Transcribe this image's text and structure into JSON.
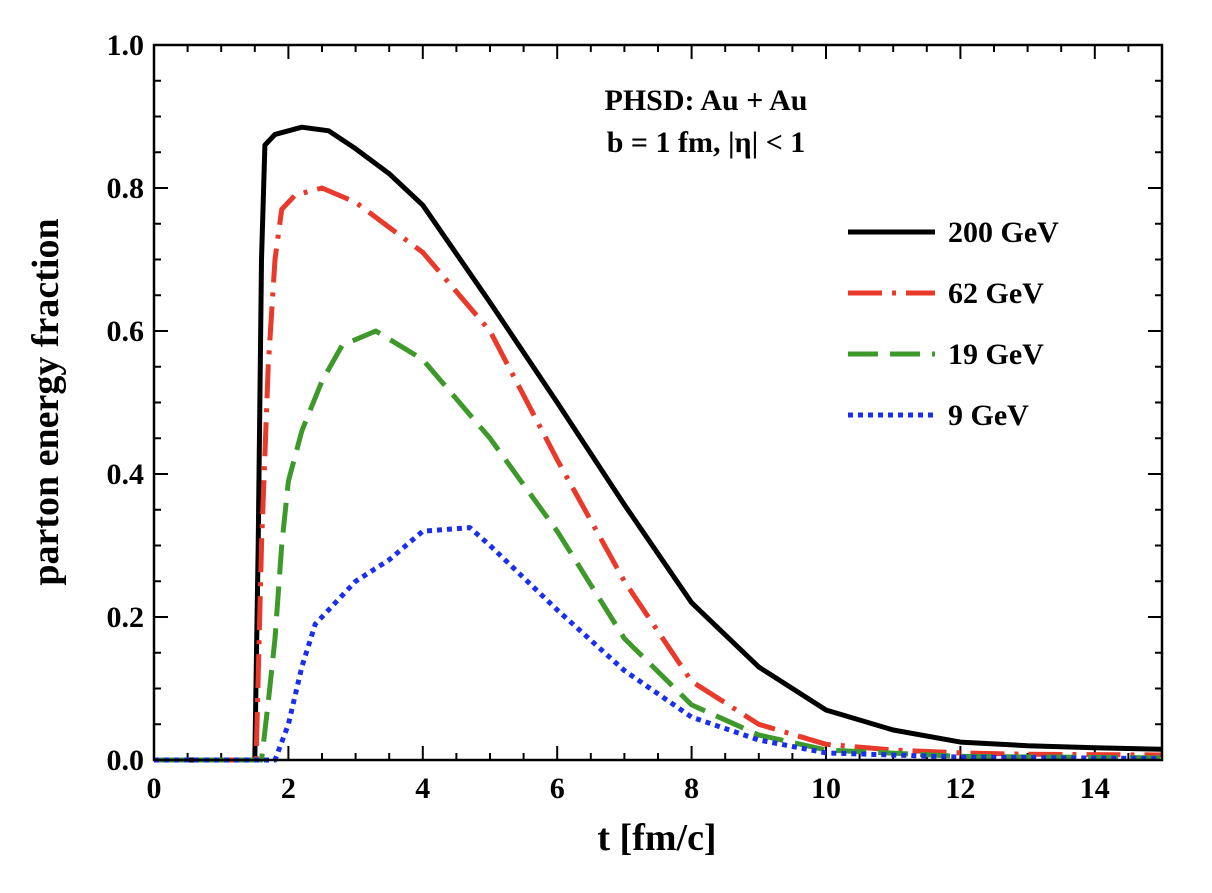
{
  "chart_data": {
    "type": "line",
    "title": [
      "PHSD: Au + Au",
      "b = 1 fm, |η| < 1"
    ],
    "xlabel": "t [fm/c]",
    "ylabel": "parton energy fraction",
    "xlim": [
      0,
      15
    ],
    "ylim": [
      0,
      1.0
    ],
    "xticks": [
      "0",
      "2",
      "4",
      "6",
      "8",
      "10",
      "12",
      "14"
    ],
    "yticks": [
      "0.0",
      "0.2",
      "0.4",
      "0.6",
      "0.8",
      "1.0"
    ],
    "grid": false,
    "legend_position": "top-right",
    "series": [
      {
        "name": "200 GeV",
        "color": "#000000",
        "style": "solid",
        "x": [
          0,
          1.5,
          1.55,
          1.6,
          1.65,
          1.8,
          2.2,
          2.6,
          3,
          3.5,
          4,
          5,
          6,
          7,
          8,
          9,
          10,
          11,
          12,
          13,
          14,
          15
        ],
        "y": [
          0,
          0,
          0.3,
          0.7,
          0.86,
          0.875,
          0.885,
          0.88,
          0.855,
          0.82,
          0.776,
          0.64,
          0.5,
          0.357,
          0.22,
          0.13,
          0.07,
          0.042,
          0.025,
          0.02,
          0.017,
          0.015
        ]
      },
      {
        "name": "62 GeV",
        "color": "#e8392a",
        "style": "dashdot",
        "x": [
          0,
          1.52,
          1.6,
          1.7,
          1.8,
          1.9,
          2.1,
          2.5,
          3,
          4,
          5,
          6,
          7,
          8,
          9,
          10,
          11,
          12,
          13,
          15
        ],
        "y": [
          0,
          0,
          0.3,
          0.55,
          0.7,
          0.77,
          0.79,
          0.8,
          0.78,
          0.71,
          0.6,
          0.42,
          0.25,
          0.11,
          0.05,
          0.022,
          0.014,
          0.01,
          0.008,
          0.007
        ]
      },
      {
        "name": "19 GeV",
        "color": "#3d9a2a",
        "style": "dashed",
        "x": [
          0,
          1.6,
          1.7,
          1.8,
          1.9,
          2.0,
          2.2,
          2.5,
          2.8,
          3.3,
          4,
          5,
          6,
          7,
          8,
          9,
          10,
          12,
          15
        ],
        "y": [
          0,
          0,
          0.08,
          0.17,
          0.3,
          0.39,
          0.46,
          0.53,
          0.58,
          0.6,
          0.56,
          0.45,
          0.32,
          0.17,
          0.077,
          0.035,
          0.014,
          0.005,
          0.003
        ]
      },
      {
        "name": "9 GeV",
        "color": "#1a2ef0",
        "style": "dotted",
        "x": [
          0,
          1.8,
          2.0,
          2.2,
          2.4,
          2.7,
          3,
          3.5,
          4,
          4.7,
          5,
          6,
          7,
          8,
          9,
          10,
          12,
          15
        ],
        "y": [
          0,
          0,
          0.05,
          0.13,
          0.19,
          0.22,
          0.25,
          0.28,
          0.32,
          0.325,
          0.3,
          0.21,
          0.125,
          0.06,
          0.028,
          0.01,
          0.004,
          0.002
        ]
      }
    ]
  }
}
